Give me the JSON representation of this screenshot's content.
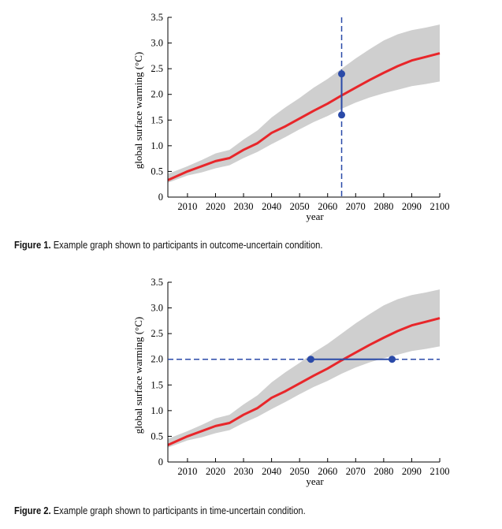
{
  "figures": [
    {
      "caption_label": "Figure 1.",
      "caption_text": " Example graph shown to participants in outcome-uncertain condition.",
      "chart_data": {
        "type": "line",
        "xlabel": "year",
        "ylabel": "global surface warming (°C)",
        "xlim": [
          2003,
          2100
        ],
        "ylim": [
          0,
          3.5
        ],
        "xticks": [
          2010,
          2020,
          2030,
          2040,
          2050,
          2060,
          2070,
          2080,
          2090,
          2100
        ],
        "yticks": [
          0,
          0.5,
          1.0,
          1.5,
          2.0,
          2.5,
          3.0,
          3.5
        ],
        "ytick_labels": [
          "0",
          "0.5",
          "1.0",
          "1.5",
          "2.0",
          "2.5",
          "3.0",
          "3.5"
        ],
        "grid": false,
        "x": [
          2003,
          2010,
          2015,
          2020,
          2025,
          2030,
          2035,
          2040,
          2045,
          2050,
          2055,
          2060,
          2065,
          2070,
          2075,
          2080,
          2085,
          2090,
          2095,
          2100
        ],
        "series": [
          {
            "values": [
              0.33,
              0.5,
              0.6,
              0.7,
              0.76,
              0.92,
              1.05,
              1.25,
              1.38,
              1.53,
              1.68,
              1.82,
              1.98,
              2.13,
              2.28,
              2.42,
              2.55,
              2.66,
              2.73,
              2.8
            ],
            "color": "#e8262a",
            "style": "solid"
          }
        ],
        "band": {
          "upper": [
            0.45,
            0.6,
            0.72,
            0.85,
            0.92,
            1.12,
            1.3,
            1.55,
            1.75,
            1.93,
            2.13,
            2.3,
            2.5,
            2.7,
            2.88,
            3.05,
            3.17,
            3.25,
            3.3,
            3.36
          ],
          "lower": [
            0.28,
            0.42,
            0.48,
            0.56,
            0.62,
            0.76,
            0.88,
            1.03,
            1.17,
            1.32,
            1.46,
            1.58,
            1.72,
            1.84,
            1.94,
            2.02,
            2.09,
            2.16,
            2.2,
            2.25
          ],
          "color": "#cfcfcf"
        },
        "annotations": [
          {
            "kind": "vline-dashed",
            "x": 2065,
            "color": "#2a4aa8"
          },
          {
            "kind": "interval-vertical",
            "x": 2065,
            "y1": 1.6,
            "y2": 2.4,
            "color": "#2a4aa8"
          }
        ]
      }
    },
    {
      "caption_label": "Figure 2.",
      "caption_text": " Example graph shown to participants in time-uncertain condition.",
      "chart_data": {
        "type": "line",
        "xlabel": "year",
        "ylabel": "global surface warming (°C)",
        "xlim": [
          2003,
          2100
        ],
        "ylim": [
          0,
          3.5
        ],
        "xticks": [
          2010,
          2020,
          2030,
          2040,
          2050,
          2060,
          2070,
          2080,
          2090,
          2100
        ],
        "yticks": [
          0,
          0.5,
          1.0,
          1.5,
          2.0,
          2.5,
          3.0,
          3.5
        ],
        "ytick_labels": [
          "0",
          "0.5",
          "1.0",
          "1.5",
          "2.0",
          "2.5",
          "3.0",
          "3.5"
        ],
        "grid": false,
        "x": [
          2003,
          2010,
          2015,
          2020,
          2025,
          2030,
          2035,
          2040,
          2045,
          2050,
          2055,
          2060,
          2065,
          2070,
          2075,
          2080,
          2085,
          2090,
          2095,
          2100
        ],
        "series": [
          {
            "values": [
              0.33,
              0.5,
              0.6,
              0.7,
              0.76,
              0.92,
              1.05,
              1.25,
              1.38,
              1.53,
              1.68,
              1.82,
              1.98,
              2.13,
              2.28,
              2.42,
              2.55,
              2.66,
              2.73,
              2.8
            ],
            "color": "#e8262a",
            "style": "solid"
          }
        ],
        "band": {
          "upper": [
            0.45,
            0.6,
            0.72,
            0.85,
            0.92,
            1.12,
            1.3,
            1.55,
            1.75,
            1.93,
            2.13,
            2.3,
            2.5,
            2.7,
            2.88,
            3.05,
            3.17,
            3.25,
            3.3,
            3.36
          ],
          "lower": [
            0.28,
            0.42,
            0.48,
            0.56,
            0.62,
            0.76,
            0.88,
            1.03,
            1.17,
            1.32,
            1.46,
            1.58,
            1.72,
            1.84,
            1.94,
            2.02,
            2.09,
            2.16,
            2.2,
            2.25
          ],
          "color": "#cfcfcf"
        },
        "annotations": [
          {
            "kind": "hline-dashed",
            "y": 2.0,
            "color": "#2a4aa8"
          },
          {
            "kind": "interval-horizontal",
            "y": 2.0,
            "x1": 2054,
            "x2": 2083,
            "color": "#2a4aa8"
          }
        ]
      }
    }
  ]
}
